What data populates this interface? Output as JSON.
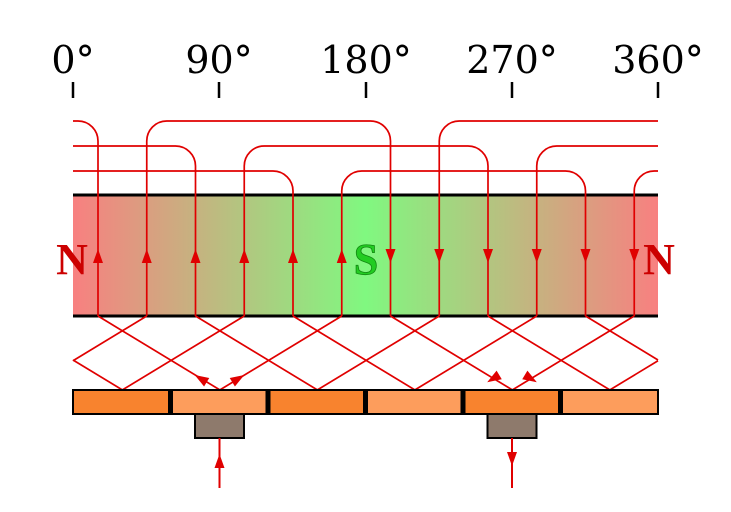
{
  "angle_labels": [
    "0°",
    "90°",
    "180°",
    "270°",
    "360°"
  ],
  "poles": {
    "left": "N",
    "center": "S",
    "right": "N"
  },
  "colors": {
    "wire": "#e00000",
    "north": "#cc0000",
    "south": "#22cc22",
    "band_north": "#f88080",
    "band_south": "#80f880",
    "commutator_dark": "#f8832e",
    "commutator_light": "#fd9d5c",
    "brush": "#8e7a6c"
  },
  "conductor_current": [
    "up",
    "up",
    "up",
    "up",
    "up",
    "up",
    "down",
    "down",
    "down",
    "down",
    "down",
    "down"
  ],
  "brush_current": {
    "left": "in",
    "right": "out"
  }
}
